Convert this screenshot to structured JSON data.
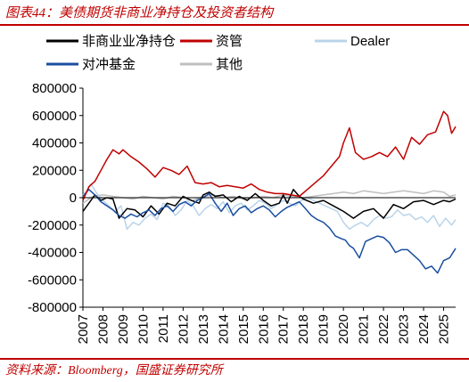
{
  "header": {
    "title": "图表44：美债期货非商业净持仓及投资者结构"
  },
  "footer": {
    "source": "资料来源：Bloomberg，国盛证券研究所"
  },
  "colors": {
    "accent": "#c00000"
  },
  "chart_data": {
    "type": "line",
    "title": "",
    "xlabel": "",
    "ylabel": "",
    "x_tick_labels": [
      "2007",
      "2008",
      "2009",
      "2010",
      "2011",
      "2012",
      "2013",
      "2014",
      "2015",
      "2016",
      "2017",
      "2018",
      "2019",
      "2020",
      "2021",
      "2022",
      "2023",
      "2024",
      "2025"
    ],
    "x_range": [
      2007.0,
      2025.6
    ],
    "ylim": [
      -800000,
      800000
    ],
    "y_ticks": [
      800000,
      600000,
      400000,
      200000,
      0,
      -200000,
      -400000,
      -600000,
      -800000
    ],
    "y_tick_labels": [
      "800000",
      "600000",
      "400000",
      "200000",
      "0",
      "-200000",
      "-400000",
      "-600000",
      "-800000"
    ],
    "grid": false,
    "legend_position": "top",
    "series": [
      {
        "name": "非商业业净持仓",
        "color": "#000000",
        "width": 1.5,
        "x": [
          2007.0,
          2007.3,
          2007.6,
          2007.9,
          2008.2,
          2008.5,
          2008.8,
          2009.2,
          2009.6,
          2010.0,
          2010.4,
          2010.8,
          2011.2,
          2011.6,
          2012.0,
          2012.4,
          2012.8,
          2013.0,
          2013.3,
          2013.6,
          2014.0,
          2014.4,
          2014.8,
          2015.2,
          2015.6,
          2016.0,
          2016.4,
          2016.8,
          2017.0,
          2017.2,
          2017.5,
          2017.8,
          2018.0,
          2018.5,
          2019.0,
          2019.5,
          2020.0,
          2020.5,
          2021.0,
          2021.5,
          2022.0,
          2022.5,
          2023.0,
          2023.5,
          2024.0,
          2024.5,
          2025.0,
          2025.3,
          2025.6
        ],
        "y": [
          -100000,
          -40000,
          20000,
          -20000,
          0,
          -10000,
          -150000,
          -80000,
          -90000,
          -140000,
          -60000,
          -120000,
          -40000,
          -60000,
          10000,
          -20000,
          -40000,
          20000,
          40000,
          10000,
          20000,
          -30000,
          10000,
          -20000,
          30000,
          -20000,
          -60000,
          -40000,
          20000,
          -40000,
          60000,
          10000,
          -10000,
          -40000,
          -20000,
          -60000,
          -100000,
          -150000,
          -100000,
          -80000,
          -150000,
          -50000,
          -80000,
          -30000,
          -20000,
          -50000,
          -20000,
          -30000,
          -10000
        ]
      },
      {
        "name": "资管",
        "color": "#c00000",
        "width": 1.5,
        "x": [
          2007.0,
          2007.3,
          2007.6,
          2007.9,
          2008.2,
          2008.5,
          2008.8,
          2009.0,
          2009.4,
          2009.8,
          2010.2,
          2010.6,
          2011.0,
          2011.4,
          2011.8,
          2012.2,
          2012.6,
          2013.0,
          2013.4,
          2013.8,
          2014.2,
          2014.6,
          2015.0,
          2015.4,
          2015.8,
          2016.2,
          2016.6,
          2017.0,
          2017.4,
          2017.8,
          2018.2,
          2018.6,
          2019.0,
          2019.4,
          2019.8,
          2020.0,
          2020.3,
          2020.6,
          2021.0,
          2021.4,
          2021.8,
          2022.2,
          2022.6,
          2023.0,
          2023.4,
          2023.8,
          2024.2,
          2024.6,
          2025.0,
          2025.2,
          2025.4,
          2025.6
        ],
        "y": [
          -20000,
          80000,
          120000,
          200000,
          280000,
          350000,
          320000,
          350000,
          300000,
          260000,
          210000,
          150000,
          220000,
          200000,
          170000,
          230000,
          110000,
          100000,
          110000,
          80000,
          90000,
          80000,
          70000,
          100000,
          60000,
          40000,
          30000,
          30000,
          20000,
          10000,
          60000,
          110000,
          160000,
          230000,
          300000,
          400000,
          510000,
          330000,
          280000,
          300000,
          330000,
          300000,
          370000,
          280000,
          440000,
          390000,
          460000,
          480000,
          630000,
          600000,
          470000,
          520000
        ]
      },
      {
        "name": "Dealer",
        "color": "#b9d4ea",
        "width": 1.5,
        "x": [
          2007.0,
          2007.2,
          2007.4,
          2007.7,
          2008.0,
          2008.3,
          2008.6,
          2008.9,
          2009.2,
          2009.5,
          2009.8,
          2010.1,
          2010.4,
          2010.7,
          2011.0,
          2011.3,
          2011.6,
          2011.9,
          2012.2,
          2012.5,
          2012.8,
          2013.1,
          2013.4,
          2013.7,
          2014.0,
          2014.3,
          2014.6,
          2014.9,
          2015.2,
          2015.5,
          2015.8,
          2016.1,
          2016.4,
          2016.7,
          2017.0,
          2017.3,
          2017.6,
          2017.9,
          2018.2,
          2018.5,
          2018.8,
          2019.1,
          2019.4,
          2019.7,
          2020.0,
          2020.3,
          2020.6,
          2020.9,
          2021.2,
          2021.5,
          2021.8,
          2022.1,
          2022.4,
          2022.7,
          2023.0,
          2023.3,
          2023.6,
          2023.9,
          2024.2,
          2024.5,
          2024.8,
          2025.1,
          2025.4,
          2025.6
        ],
        "y": [
          20000,
          50000,
          100000,
          30000,
          -20000,
          -60000,
          -100000,
          -60000,
          -230000,
          -180000,
          -200000,
          -150000,
          -120000,
          -160000,
          -40000,
          -60000,
          -130000,
          -90000,
          -20000,
          -60000,
          -130000,
          -80000,
          -50000,
          -80000,
          -30000,
          -110000,
          -60000,
          -40000,
          -90000,
          -60000,
          -20000,
          -40000,
          -80000,
          -50000,
          -20000,
          -40000,
          -60000,
          -20000,
          0,
          -20000,
          -40000,
          -60000,
          -80000,
          -100000,
          -180000,
          -230000,
          -200000,
          -180000,
          -210000,
          -160000,
          -130000,
          -150000,
          -140000,
          -90000,
          -130000,
          -120000,
          -160000,
          -140000,
          -180000,
          -130000,
          -210000,
          -150000,
          -200000,
          -160000
        ]
      },
      {
        "name": "对冲基金",
        "color": "#1a4ea0",
        "width": 1.5,
        "x": [
          2007.0,
          2007.3,
          2007.6,
          2007.9,
          2008.2,
          2008.5,
          2008.8,
          2009.1,
          2009.4,
          2009.7,
          2010.0,
          2010.3,
          2010.6,
          2010.9,
          2011.2,
          2011.5,
          2011.8,
          2012.1,
          2012.4,
          2012.7,
          2013.0,
          2013.3,
          2013.6,
          2013.9,
          2014.2,
          2014.5,
          2014.8,
          2015.1,
          2015.4,
          2015.7,
          2016.0,
          2016.3,
          2016.6,
          2016.9,
          2017.2,
          2017.5,
          2017.8,
          2018.1,
          2018.4,
          2018.7,
          2019.0,
          2019.3,
          2019.6,
          2019.9,
          2020.1,
          2020.3,
          2020.5,
          2020.8,
          2021.1,
          2021.4,
          2021.7,
          2022.0,
          2022.3,
          2022.6,
          2022.9,
          2023.2,
          2023.5,
          2023.8,
          2024.1,
          2024.4,
          2024.7,
          2025.0,
          2025.3,
          2025.6
        ],
        "y": [
          10000,
          60000,
          20000,
          -30000,
          -60000,
          -90000,
          -130000,
          -150000,
          -120000,
          -140000,
          -110000,
          -90000,
          -130000,
          -80000,
          -60000,
          -100000,
          -50000,
          -30000,
          -60000,
          -20000,
          0,
          30000,
          -40000,
          -100000,
          -40000,
          -130000,
          -80000,
          -60000,
          -110000,
          -80000,
          -60000,
          -90000,
          -140000,
          -100000,
          -70000,
          -50000,
          -30000,
          -80000,
          -130000,
          -160000,
          -180000,
          -220000,
          -280000,
          -300000,
          -310000,
          -350000,
          -370000,
          -440000,
          -320000,
          -300000,
          -280000,
          -290000,
          -330000,
          -400000,
          -380000,
          -380000,
          -420000,
          -460000,
          -520000,
          -500000,
          -550000,
          -460000,
          -440000,
          -370000
        ]
      },
      {
        "name": "其他",
        "color": "#bfbfbf",
        "width": 1.5,
        "x": [
          2007.0,
          2007.5,
          2008.0,
          2008.5,
          2009.0,
          2009.5,
          2010.0,
          2010.5,
          2011.0,
          2011.5,
          2012.0,
          2012.5,
          2013.0,
          2013.5,
          2014.0,
          2014.5,
          2015.0,
          2015.5,
          2016.0,
          2016.5,
          2017.0,
          2017.5,
          2018.0,
          2018.5,
          2019.0,
          2019.5,
          2020.0,
          2020.5,
          2021.0,
          2021.5,
          2022.0,
          2022.5,
          2023.0,
          2023.5,
          2024.0,
          2024.5,
          2025.0,
          2025.3,
          2025.6
        ],
        "y": [
          -40000,
          10000,
          20000,
          10000,
          0,
          -10000,
          10000,
          0,
          -10000,
          10000,
          0,
          -20000,
          10000,
          20000,
          0,
          10000,
          -10000,
          0,
          10000,
          0,
          20000,
          10000,
          0,
          10000,
          20000,
          30000,
          40000,
          30000,
          50000,
          40000,
          30000,
          40000,
          50000,
          40000,
          30000,
          50000,
          40000,
          10000,
          20000
        ]
      }
    ]
  }
}
